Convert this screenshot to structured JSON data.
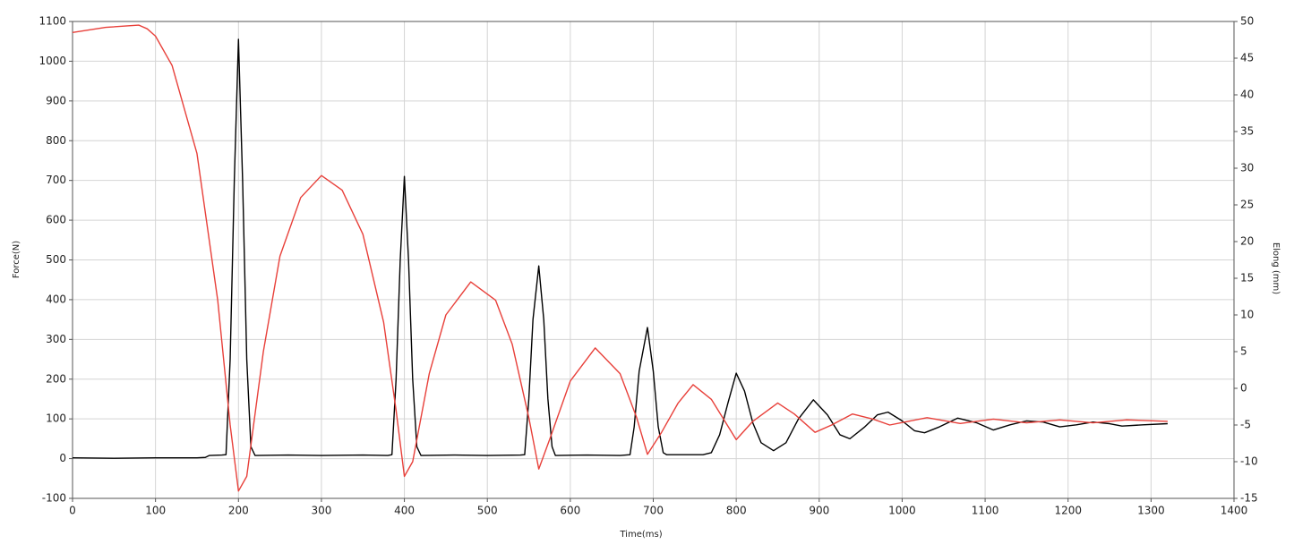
{
  "chart_data": {
    "type": "line",
    "x_label": "Time(ms)",
    "y_label": "Force(N)",
    "y2_label": "Elong (mm)",
    "xlim": [
      0,
      1400
    ],
    "xticks": [
      0,
      100,
      200,
      300,
      400,
      500,
      600,
      700,
      800,
      900,
      1000,
      1100,
      1200,
      1300,
      1400
    ],
    "ylim": [
      -100,
      1100
    ],
    "yticks": [
      -100,
      0,
      100,
      200,
      300,
      400,
      500,
      600,
      700,
      800,
      900,
      1000,
      1100
    ],
    "y2lim": [
      -15,
      50
    ],
    "y2ticks": [
      -15,
      -10,
      -5,
      0,
      5,
      10,
      15,
      20,
      25,
      30,
      35,
      40,
      45,
      50
    ],
    "grid": true,
    "series": [
      {
        "color": "#000000",
        "axis": "y",
        "x": [
          0,
          50,
          100,
          150,
          160,
          165,
          180,
          185,
          190,
          195,
          200,
          205,
          210,
          215,
          220,
          260,
          300,
          350,
          380,
          385,
          390,
          395,
          400,
          405,
          410,
          415,
          420,
          460,
          500,
          540,
          545,
          550,
          555,
          562,
          568,
          573,
          578,
          582,
          620,
          660,
          672,
          677,
          683,
          693,
          700,
          706,
          712,
          716,
          760,
          770,
          780,
          790,
          800,
          810,
          820,
          830,
          845,
          860,
          875,
          893,
          910,
          925,
          937,
          955,
          970,
          983,
          1000,
          1015,
          1027,
          1045,
          1067,
          1090,
          1110,
          1130,
          1150,
          1170,
          1190,
          1210,
          1230,
          1250,
          1265,
          1290,
          1320
        ],
        "values": [
          2,
          1,
          2,
          2,
          3,
          8,
          9,
          10,
          250,
          700,
          1055,
          700,
          250,
          30,
          8,
          9,
          8,
          9,
          8,
          10,
          200,
          500,
          710,
          500,
          200,
          30,
          8,
          9,
          8,
          9,
          10,
          150,
          350,
          485,
          350,
          150,
          30,
          8,
          9,
          8,
          10,
          80,
          220,
          330,
          220,
          80,
          15,
          10,
          10,
          15,
          60,
          140,
          215,
          170,
          90,
          40,
          20,
          40,
          100,
          148,
          110,
          60,
          50,
          80,
          110,
          117,
          95,
          70,
          65,
          80,
          102,
          90,
          72,
          85,
          95,
          92,
          80,
          85,
          92,
          88,
          82,
          85,
          88
        ]
      },
      {
        "color": "#e8403a",
        "axis": "y2",
        "x": [
          0,
          40,
          80,
          90,
          100,
          120,
          150,
          175,
          190,
          200,
          210,
          230,
          250,
          275,
          300,
          325,
          350,
          375,
          390,
          400,
          410,
          430,
          450,
          480,
          510,
          530,
          550,
          562,
          575,
          600,
          630,
          660,
          680,
          693,
          710,
          730,
          748,
          770,
          800,
          820,
          850,
          870,
          895,
          915,
          940,
          965,
          985,
          1030,
          1070,
          1110,
          1150,
          1190,
          1230,
          1270,
          1320
        ],
        "values": [
          48.5,
          49.2,
          49.5,
          49,
          48,
          44,
          32,
          12,
          -5,
          -14,
          -12,
          5,
          18,
          26,
          29,
          27,
          21,
          9,
          -3,
          -12,
          -10,
          2,
          10,
          14.5,
          12,
          6,
          -4,
          -11,
          -7,
          1,
          5.5,
          2,
          -4,
          -9,
          -6,
          -2,
          0.5,
          -1.5,
          -7,
          -4.5,
          -2,
          -3.5,
          -6,
          -5,
          -3.5,
          -4.2,
          -5,
          -4,
          -4.8,
          -4.2,
          -4.7,
          -4.3,
          -4.7,
          -4.3,
          -4.5
        ]
      }
    ]
  }
}
